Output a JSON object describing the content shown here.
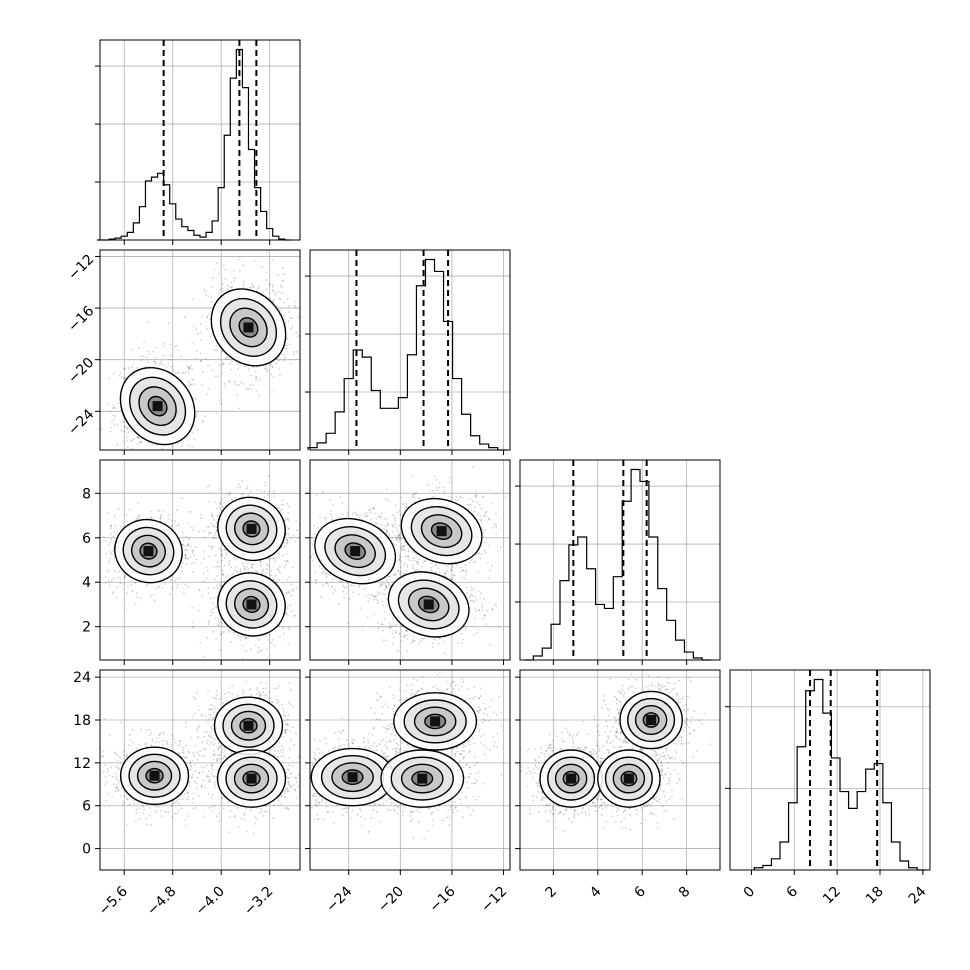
{
  "chart_data": {
    "type": "corner",
    "title": "",
    "grid": true,
    "parameters": [
      {
        "index": 0,
        "range": [
          -6.0,
          -2.7
        ],
        "ticks": [
          -5.6,
          -4.8,
          -4.0,
          -3.2
        ],
        "tick_labels": [
          "−5.6",
          "−4.8",
          "−4.0",
          "−3.2"
        ],
        "quantiles": [
          -4.95,
          -3.7,
          -3.42
        ],
        "hist_peaks": {
          "x": [
            -6.0,
            -5.9,
            -5.8,
            -5.7,
            -5.6,
            -5.5,
            -5.4,
            -5.3,
            -5.2,
            -5.1,
            -5.0,
            -4.9,
            -4.8,
            -4.7,
            -4.6,
            -4.5,
            -4.4,
            -4.3,
            -4.2,
            -4.1,
            -4.0,
            -3.9,
            -3.8,
            -3.7,
            -3.6,
            -3.5,
            -3.4,
            -3.3,
            -3.2,
            -3.1,
            -3.0,
            -2.9
          ],
          "y": [
            0,
            0,
            1,
            2,
            4,
            8,
            18,
            35,
            62,
            66,
            70,
            58,
            38,
            22,
            14,
            10,
            5,
            3,
            8,
            20,
            55,
            110,
            170,
            200,
            160,
            95,
            55,
            30,
            12,
            4,
            1,
            0
          ]
        }
      },
      {
        "index": 1,
        "range": [
          -27.0,
          -11.5
        ],
        "ticks": [
          -24,
          -20,
          -16,
          -12
        ],
        "tick_labels": [
          "−24",
          "−20",
          "−16",
          "−12"
        ],
        "quantiles": [
          -23.4,
          -18.2,
          -16.3
        ],
        "hist_peaks": {
          "x": [
            -26.8,
            -26.1,
            -25.4,
            -24.7,
            -24.0,
            -23.3,
            -22.6,
            -21.9,
            -21.2,
            -20.5,
            -19.8,
            -19.1,
            -18.4,
            -17.7,
            -17.0,
            -16.3,
            -15.6,
            -14.9,
            -14.2,
            -13.5,
            -12.8,
            -12.1
          ],
          "y": [
            2,
            6,
            14,
            32,
            60,
            84,
            78,
            50,
            35,
            35,
            44,
            80,
            138,
            160,
            150,
            108,
            60,
            30,
            12,
            5,
            2,
            0
          ]
        }
      },
      {
        "index": 2,
        "range": [
          0.5,
          9.5
        ],
        "ticks": [
          2,
          4,
          6,
          8
        ],
        "tick_labels": [
          "2",
          "4",
          "6",
          "8"
        ],
        "quantiles": [
          2.9,
          5.15,
          6.2
        ],
        "hist_peaks": {
          "x": [
            0.9,
            1.3,
            1.7,
            2.1,
            2.5,
            2.9,
            3.3,
            3.7,
            4.1,
            4.5,
            4.9,
            5.3,
            5.7,
            6.1,
            6.5,
            6.9,
            7.3,
            7.7,
            8.1,
            8.5,
            8.9
          ],
          "y": [
            0,
            2,
            6,
            18,
            40,
            58,
            62,
            46,
            28,
            26,
            42,
            80,
            96,
            90,
            62,
            36,
            20,
            10,
            4,
            1,
            0
          ]
        }
      },
      {
        "index": 3,
        "range": [
          -3.0,
          25.0
        ],
        "ticks": [
          0,
          6,
          12,
          18,
          24
        ],
        "tick_labels": [
          "0",
          "6",
          "12",
          "18",
          "24"
        ],
        "quantiles": [
          8.2,
          11.1,
          17.6
        ],
        "hist_peaks": {
          "x": [
            1.0,
            2.2,
            3.4,
            4.6,
            5.8,
            7.0,
            8.2,
            9.4,
            10.6,
            11.8,
            13.0,
            14.2,
            15.4,
            16.6,
            17.8,
            19.0,
            20.2,
            21.4,
            22.6,
            23.8
          ],
          "y": [
            2,
            4,
            10,
            25,
            60,
            110,
            160,
            170,
            140,
            100,
            70,
            55,
            70,
            90,
            95,
            60,
            25,
            8,
            2,
            0
          ]
        }
      }
    ],
    "modes_2d": [
      {
        "pair": [
          0,
          1
        ],
        "centers": [
          [
            -5.05,
            -23.6
          ],
          [
            -3.55,
            -17.5
          ]
        ]
      },
      {
        "pair": [
          0,
          2
        ],
        "centers": [
          [
            -5.2,
            5.4
          ],
          [
            -3.5,
            6.4
          ],
          [
            -3.5,
            3.0
          ]
        ]
      },
      {
        "pair": [
          1,
          2
        ],
        "centers": [
          [
            -23.5,
            5.4
          ],
          [
            -16.8,
            6.3
          ],
          [
            -17.8,
            3.0
          ]
        ]
      },
      {
        "pair": [
          0,
          3
        ],
        "centers": [
          [
            -5.1,
            10.2
          ],
          [
            -3.55,
            17.2
          ],
          [
            -3.5,
            9.8
          ]
        ]
      },
      {
        "pair": [
          1,
          3
        ],
        "centers": [
          [
            -23.7,
            10.0
          ],
          [
            -17.3,
            17.8
          ],
          [
            -18.3,
            9.8
          ]
        ]
      },
      {
        "pair": [
          2,
          3
        ],
        "centers": [
          [
            2.8,
            9.8
          ],
          [
            5.4,
            9.8
          ],
          [
            6.4,
            18.0
          ]
        ]
      }
    ]
  }
}
